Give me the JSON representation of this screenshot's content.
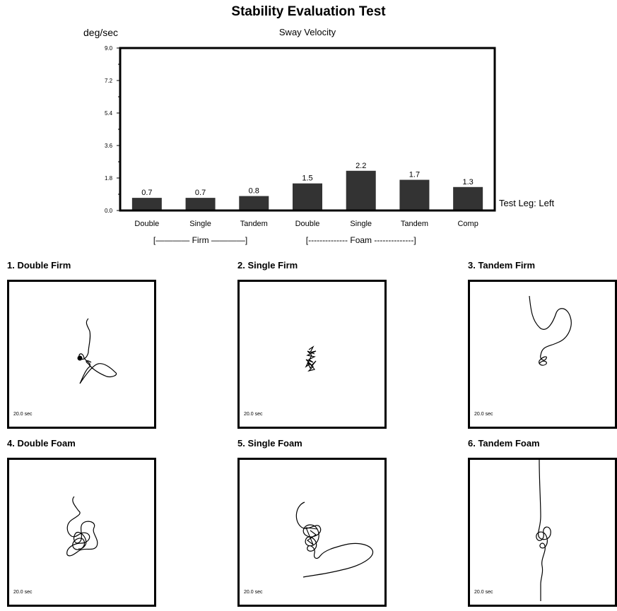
{
  "title": "Stability Evaluation Test",
  "y_unit": "deg/sec",
  "subtitle": "Sway Velocity",
  "test_leg": "Test Leg: Left",
  "chart_data": {
    "type": "bar",
    "title": "Sway Velocity",
    "ylabel": "deg/sec",
    "xlabel": "",
    "categories": [
      "Double",
      "Single",
      "Tandem",
      "Double",
      "Single",
      "Tandem",
      "Comp"
    ],
    "values": [
      0.7,
      0.7,
      0.8,
      1.5,
      2.2,
      1.7,
      1.3
    ],
    "value_labels": [
      "0.7",
      "0.7",
      "0.8",
      "1.5",
      "2.2",
      "1.7",
      "1.3"
    ],
    "ylim": [
      0,
      9.0
    ],
    "yticks": [
      "0.0",
      "1.8",
      "3.6",
      "5.4",
      "7.2",
      "9.0"
    ],
    "groups": [
      {
        "label": "[———— Firm ————]"
      },
      {
        "label": "[-------------- Foam --------------]"
      }
    ],
    "grid": false,
    "bar_color": "#333333"
  },
  "panels": [
    {
      "title": "1. Double Firm",
      "duration": "20.0 sec"
    },
    {
      "title": "2. Single Firm",
      "duration": "20.0 sec"
    },
    {
      "title": "3. Tandem Firm",
      "duration": "20.0 sec"
    },
    {
      "title": "4. Double Foam",
      "duration": "20.0 sec"
    },
    {
      "title": "5. Single Foam",
      "duration": "20.0 sec"
    },
    {
      "title": "6. Tandem Foam",
      "duration": "20.0 sec"
    }
  ]
}
